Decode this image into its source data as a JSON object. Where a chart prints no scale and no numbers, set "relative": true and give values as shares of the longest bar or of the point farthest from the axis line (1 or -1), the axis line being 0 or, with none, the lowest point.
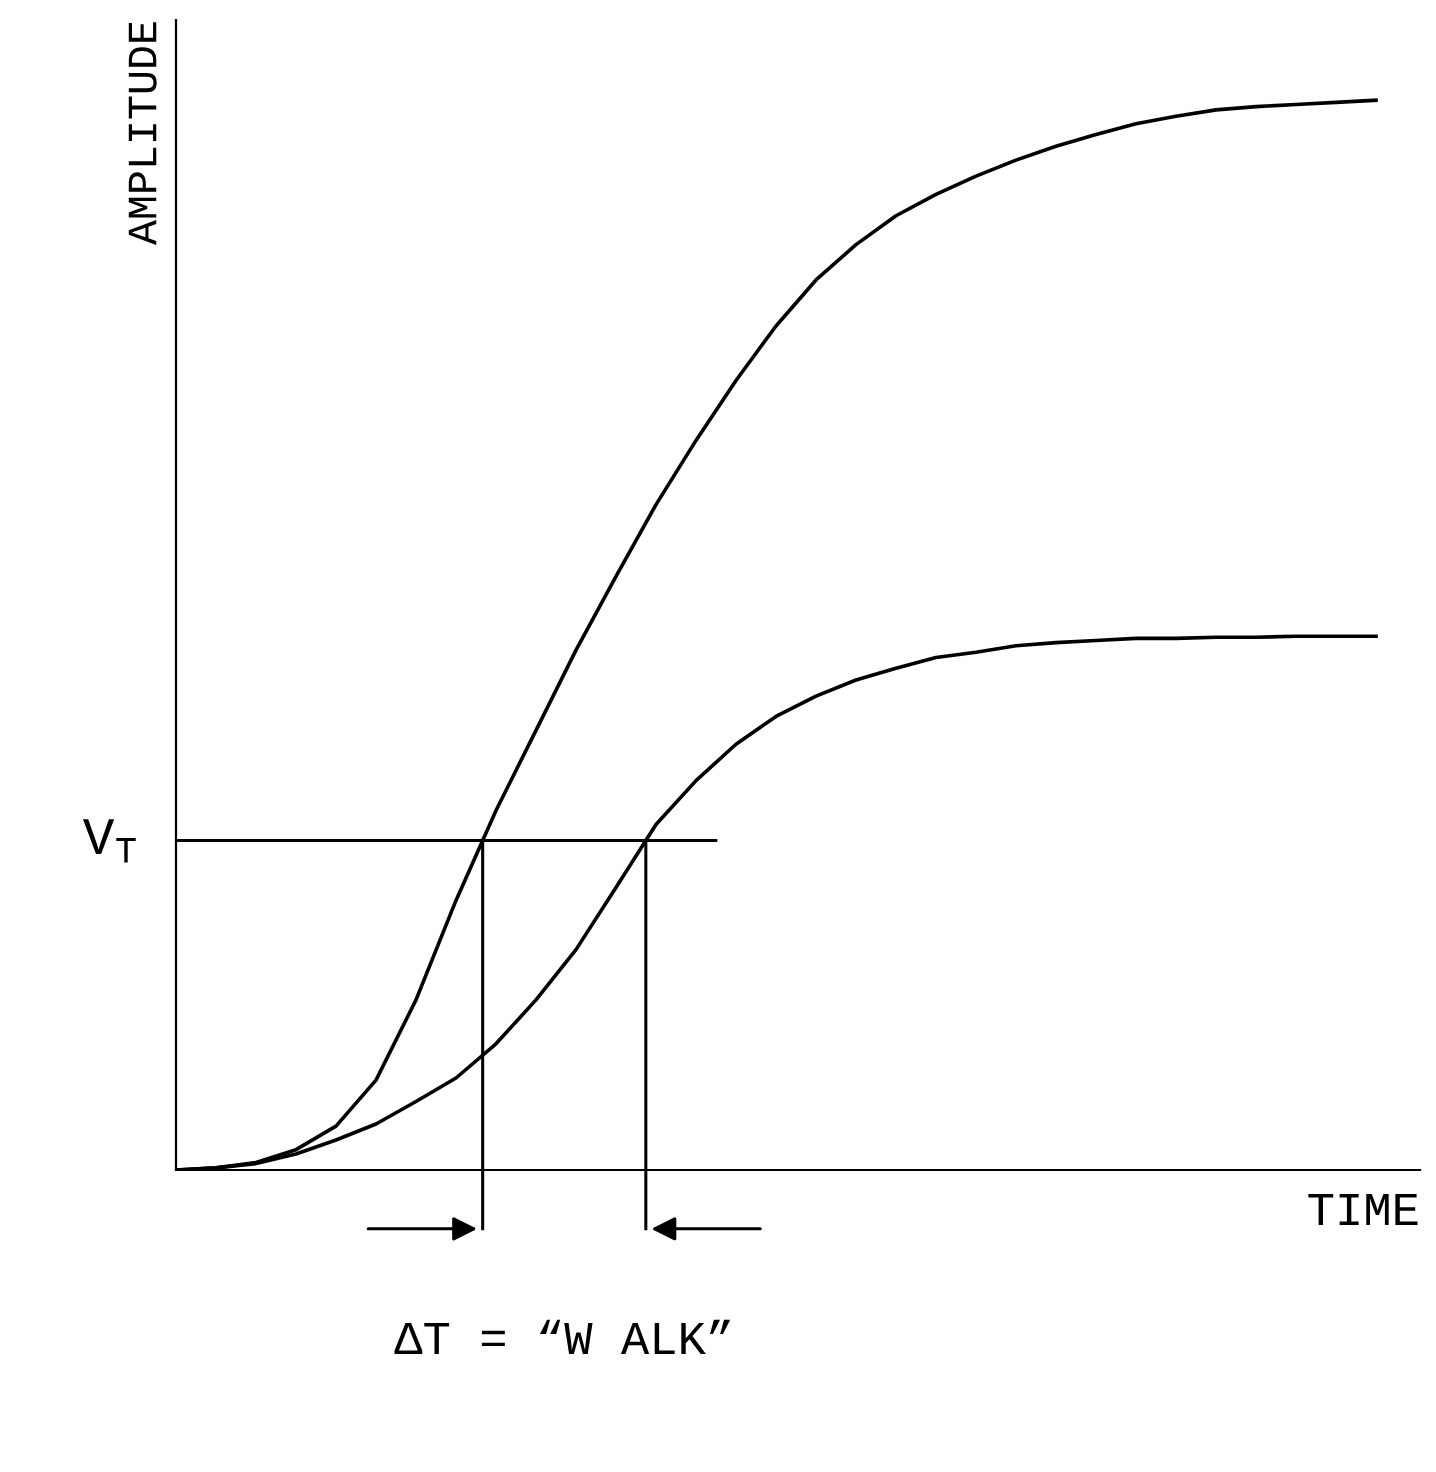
{
  "chart_data": {
    "type": "line",
    "relative": true,
    "xlabel": "TIME",
    "ylabel": "AMPLITUDE",
    "categories": [
      null,
      null,
      null,
      null,
      null,
      null,
      null,
      null,
      null,
      null,
      null,
      null,
      null,
      null,
      null,
      null,
      null,
      null,
      null,
      null,
      null,
      null,
      null,
      null,
      null,
      null,
      null,
      null,
      null,
      null,
      null
    ],
    "series": [
      {
        "color": "#000000",
        "values": [
          0,
          0.002,
          0.007,
          0.019,
          0.041,
          0.084,
          0.159,
          0.252,
          0.336,
          0.411,
          0.486,
          0.555,
          0.622,
          0.682,
          0.738,
          0.789,
          0.832,
          0.865,
          0.892,
          0.912,
          0.929,
          0.944,
          0.957,
          0.968,
          0.978,
          0.985,
          0.991,
          0.994,
          0.996,
          0.998,
          1
        ]
      },
      {
        "color": "#000000",
        "values": [
          0,
          0.002,
          0.006,
          0.015,
          0.028,
          0.043,
          0.064,
          0.086,
          0.118,
          0.159,
          0.206,
          0.264,
          0.323,
          0.364,
          0.398,
          0.424,
          0.443,
          0.458,
          0.469,
          0.479,
          0.484,
          0.49,
          0.493,
          0.495,
          0.497,
          0.497,
          0.498,
          0.498,
          0.499,
          0.499,
          0.499
        ]
      }
    ],
    "ref_lines": [
      {
        "axis": "y",
        "value": 0.308,
        "label": "V$_{T}$"
      }
    ],
    "annotations": [
      "ΔT = “W ALK”"
    ],
    "marker": "none",
    "line_style": "solid",
    "grid": false,
    "legend": false
  }
}
